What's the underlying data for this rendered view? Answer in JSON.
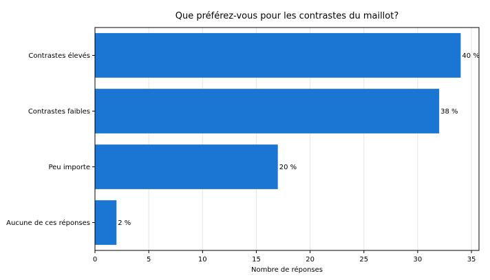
{
  "chart_data": {
    "type": "bar",
    "orientation": "horizontal",
    "title": "Que préférez-vous pour les contrastes du maillot?",
    "xlabel": "Nombre de réponses",
    "ylabel": "",
    "categories": [
      "Contrastes élevés",
      "Contrastes faibles",
      "Peu importe",
      "Aucune de ces réponses"
    ],
    "values": [
      34,
      32,
      17,
      2
    ],
    "data_labels": [
      "40 %",
      "38 %",
      "20 %",
      "2 %"
    ],
    "xlim": [
      0,
      35.7
    ],
    "xticks": [
      0,
      5,
      10,
      15,
      20,
      25,
      30,
      35
    ],
    "xtick_labels": [
      "0",
      "5",
      "10",
      "15",
      "20",
      "25",
      "30",
      "35"
    ],
    "grid": "vertical",
    "bar_color": "#1a76d2"
  }
}
